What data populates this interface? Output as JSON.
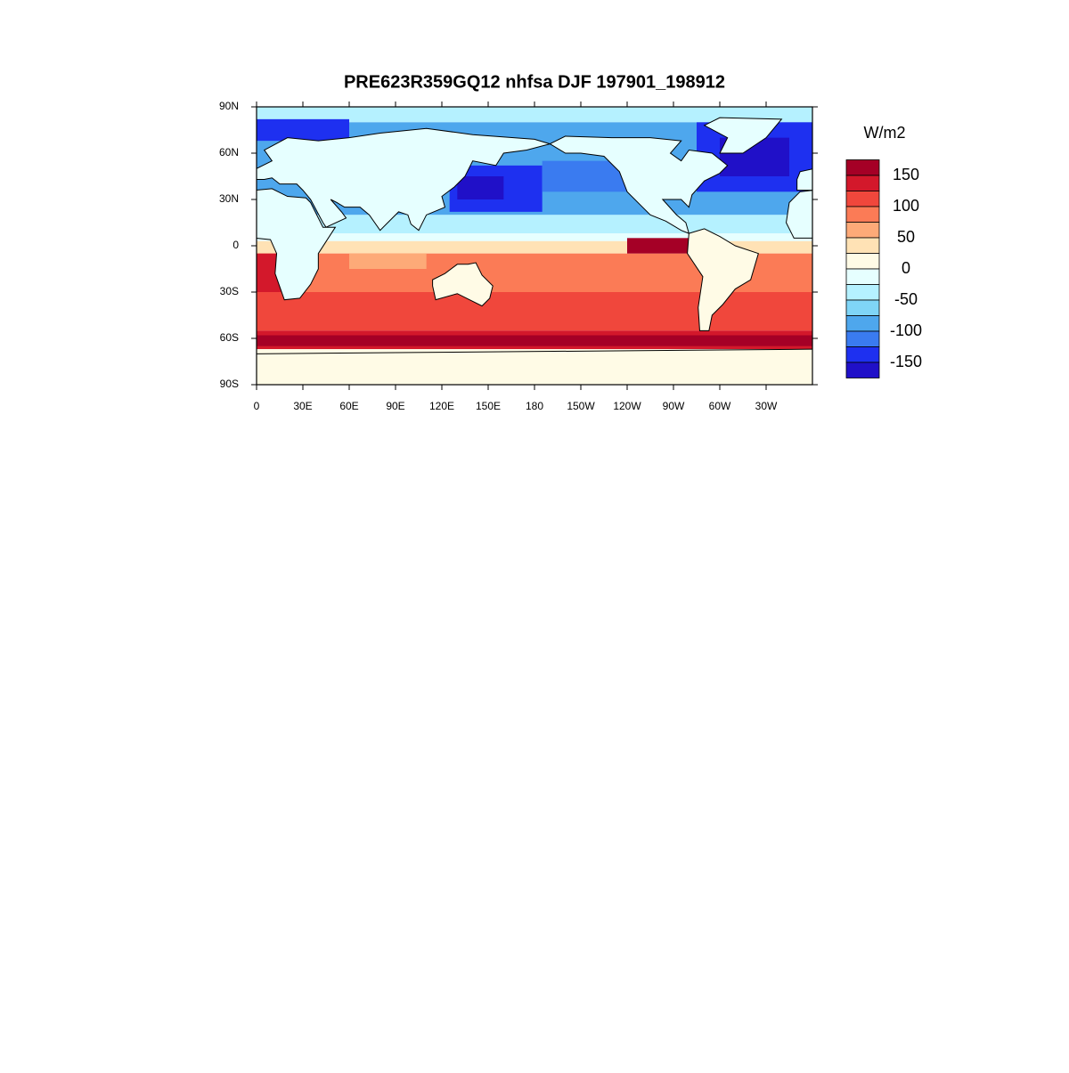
{
  "chart_data": {
    "type": "map",
    "title": "PRE623R359GQ12 nhfsa DJF 197901_198912",
    "xlim": [
      0,
      360
    ],
    "ylim": [
      -90,
      90
    ],
    "xticks": [
      0,
      {
        "value": 30,
        "label": "30E"
      },
      {
        "value": 60,
        "label": "60E"
      },
      {
        "value": 90,
        "label": "90E"
      },
      {
        "value": 120,
        "label": "120E"
      },
      {
        "value": 150,
        "label": "150E"
      },
      180,
      {
        "value": 210,
        "label": "150W"
      },
      {
        "value": 240,
        "label": "120W"
      },
      {
        "value": 270,
        "label": "90W"
      },
      {
        "value": 300,
        "label": "60W"
      },
      {
        "value": 330,
        "label": "30W"
      }
    ],
    "yticks": [
      {
        "value": 90,
        "label": "90N"
      },
      {
        "value": 60,
        "label": "60N"
      },
      {
        "value": 30,
        "label": "30N"
      },
      0,
      {
        "value": -30,
        "label": "30S"
      },
      {
        "value": -60,
        "label": "60S"
      },
      {
        "value": -90,
        "label": "90S"
      }
    ],
    "colorbar": {
      "units": "W/m2",
      "levels": [
        150,
        100,
        50,
        0,
        -50,
        -100,
        -150
      ],
      "colors": [
        "#a50026",
        "#d3182b",
        "#f0473c",
        "#fb7b56",
        "#fdaa78",
        "#ffe2b5",
        "#fffbe6",
        "#e6ffff",
        "#b5f1ff",
        "#7fd5f7",
        "#4ea7ed",
        "#3a7bf0",
        "#1e30f0",
        "#2010c8"
      ]
    }
  }
}
